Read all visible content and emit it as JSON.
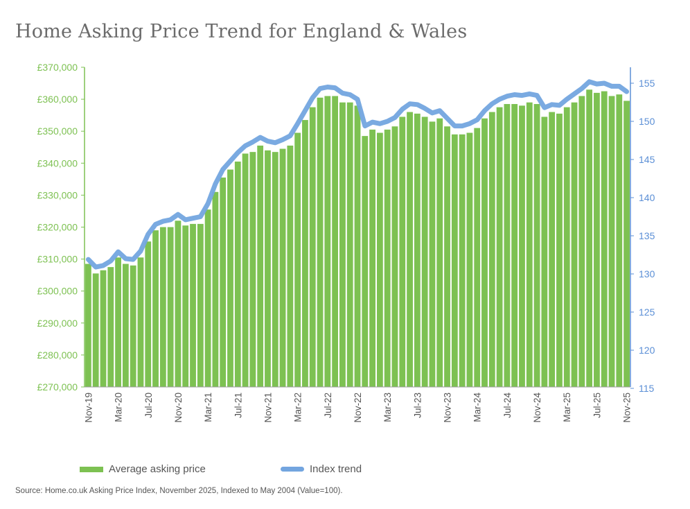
{
  "title": "Home Asking Price Trend for England & Wales",
  "source": "Source: Home.co.uk Asking Price Index, November 2025, Indexed to May 2004 (Value=100).",
  "colors": {
    "bars": "#7dc152",
    "line": "#73a5df",
    "left_axis": "#7dc152",
    "right_axis": "#5b8fd6",
    "title": "#6b6b6b"
  },
  "chart_data": {
    "type": "bar+line",
    "title": "Home Asking Price Trend for England & Wales",
    "legend_position": "bottom",
    "grid": false,
    "categories": [
      "Nov-19",
      "Dec-19",
      "Jan-20",
      "Feb-20",
      "Mar-20",
      "Apr-20",
      "May-20",
      "Jun-20",
      "Jul-20",
      "Aug-20",
      "Sep-20",
      "Oct-20",
      "Nov-20",
      "Dec-20",
      "Jan-21",
      "Feb-21",
      "Mar-21",
      "Apr-21",
      "May-21",
      "Jun-21",
      "Jul-21",
      "Aug-21",
      "Sep-21",
      "Oct-21",
      "Nov-21",
      "Dec-21",
      "Jan-22",
      "Feb-22",
      "Mar-22",
      "Apr-22",
      "May-22",
      "Jun-22",
      "Jul-22",
      "Aug-22",
      "Sep-22",
      "Oct-22",
      "Nov-22",
      "Dec-22",
      "Jan-23",
      "Feb-23",
      "Mar-23",
      "Apr-23",
      "May-23",
      "Jun-23",
      "Jul-23",
      "Aug-23",
      "Sep-23",
      "Oct-23",
      "Nov-23",
      "Dec-23",
      "Jan-24",
      "Feb-24",
      "Mar-24",
      "Apr-24",
      "May-24",
      "Jun-24",
      "Jul-24",
      "Aug-24",
      "Sep-24",
      "Oct-24",
      "Nov-24",
      "Dec-24",
      "Jan-25",
      "Feb-25",
      "Mar-25",
      "Apr-25",
      "May-25",
      "Jun-25",
      "Jul-25",
      "Aug-25",
      "Sep-25",
      "Oct-25",
      "Nov-25"
    ],
    "x_tick_labels": [
      "Nov-19",
      "Mar-20",
      "Jul-20",
      "Nov-20",
      "Mar-21",
      "Jul-21",
      "Nov-21",
      "Mar-22",
      "Jul-22",
      "Nov-22",
      "Mar-23",
      "Jul-23",
      "Nov-23",
      "Mar-24",
      "Jul-24",
      "Nov-24",
      "Mar-25",
      "Jul-25",
      "Nov-25"
    ],
    "left_axis": {
      "ylim": [
        270000,
        370000
      ],
      "ticks": [
        "£270,000",
        "£280,000",
        "£290,000",
        "£300,000",
        "£310,000",
        "£320,000",
        "£330,000",
        "£340,000",
        "£350,000",
        "£360,000",
        "£370,000"
      ]
    },
    "right_axis": {
      "ylim": [
        115,
        155
      ],
      "ticks": [
        "115",
        "120",
        "125",
        "130",
        "135",
        "140",
        "145",
        "150",
        "155"
      ]
    },
    "series": [
      {
        "name": "Average asking price",
        "type": "bar",
        "axis": "left",
        "values": [
          308500,
          305500,
          306500,
          307500,
          310500,
          308500,
          308000,
          310500,
          315500,
          319000,
          320000,
          320000,
          322000,
          320500,
          321000,
          321000,
          325500,
          331000,
          335500,
          338000,
          340500,
          343000,
          343500,
          345500,
          344000,
          343500,
          344500,
          345500,
          349500,
          353500,
          357500,
          360500,
          361000,
          361000,
          359000,
          359000,
          358000,
          348500,
          350500,
          349500,
          350500,
          351500,
          354500,
          356000,
          355500,
          354500,
          353000,
          354000,
          351500,
          349000,
          349000,
          349500,
          351000,
          354000,
          356000,
          357500,
          358500,
          358500,
          358000,
          359000,
          358500,
          354500,
          356000,
          355500,
          357500,
          359000,
          361000,
          363000,
          362000,
          362500,
          361000,
          361500,
          359500
        ]
      },
      {
        "name": "Index trend",
        "type": "line",
        "axis": "right",
        "values": [
          131.9,
          130.9,
          131.1,
          131.7,
          132.9,
          132.0,
          131.9,
          133.0,
          135.2,
          136.5,
          136.9,
          137.1,
          137.8,
          137.1,
          137.3,
          137.5,
          139.2,
          141.8,
          143.7,
          144.8,
          145.9,
          146.8,
          147.3,
          147.9,
          147.4,
          147.2,
          147.6,
          148.1,
          149.7,
          151.4,
          153.1,
          154.3,
          154.5,
          154.4,
          153.7,
          153.5,
          152.9,
          149.4,
          149.9,
          149.7,
          150.0,
          150.5,
          151.6,
          152.3,
          152.2,
          151.7,
          151.1,
          151.4,
          150.4,
          149.4,
          149.4,
          149.7,
          150.2,
          151.4,
          152.3,
          152.9,
          153.3,
          153.5,
          153.4,
          153.6,
          153.4,
          151.8,
          152.2,
          152.1,
          152.9,
          153.6,
          154.3,
          155.2,
          154.9,
          155.0,
          154.6,
          154.6,
          153.9
        ]
      }
    ]
  }
}
